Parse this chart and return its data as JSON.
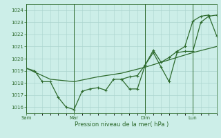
{
  "background_color": "#cceee8",
  "grid_color": "#aad4ce",
  "line_color": "#2d6a2d",
  "xlabel": "Pression niveau de la mer( hPa )",
  "ylim": [
    1015.5,
    1024.5
  ],
  "yticks": [
    1016,
    1017,
    1018,
    1019,
    1020,
    1021,
    1022,
    1023,
    1024
  ],
  "day_labels": [
    "Sam",
    "Mar",
    "Dim",
    "Lun"
  ],
  "day_positions": [
    0.0,
    0.25,
    0.625,
    0.875
  ],
  "vline_positions": [
    0.0,
    0.25,
    0.625,
    0.875
  ],
  "line1_x": [
    0.0,
    0.042,
    0.083,
    0.125,
    0.167,
    0.208,
    0.25,
    0.292,
    0.333,
    0.375,
    0.417,
    0.458,
    0.5,
    0.542,
    0.583,
    0.625,
    0.667,
    0.708,
    0.75,
    0.792,
    0.833,
    0.875,
    0.917,
    0.958,
    1.0
  ],
  "line1_y": [
    1019.2,
    1019.0,
    1018.1,
    1018.1,
    1016.8,
    1016.0,
    1015.8,
    1017.3,
    1017.5,
    1017.6,
    1017.4,
    1018.3,
    1018.3,
    1017.5,
    1017.5,
    1019.5,
    1020.5,
    1019.3,
    1018.1,
    1020.5,
    1020.6,
    1020.6,
    1023.0,
    1023.5,
    1023.6
  ],
  "line2_x": [
    0.0,
    0.125,
    0.25,
    0.375,
    0.5,
    0.625,
    0.75,
    0.875,
    1.0
  ],
  "line2_y": [
    1019.2,
    1018.3,
    1018.1,
    1018.5,
    1018.8,
    1019.3,
    1019.9,
    1020.5,
    1021.0
  ],
  "line3_x": [
    0.5,
    0.542,
    0.583,
    0.625,
    0.667,
    0.708,
    0.75,
    0.792,
    0.833,
    0.875,
    0.917,
    0.958,
    1.0
  ],
  "line3_y": [
    1018.3,
    1018.5,
    1018.6,
    1019.5,
    1020.7,
    1019.7,
    1020.1,
    1020.6,
    1021.0,
    1023.1,
    1023.5,
    1023.6,
    1021.9
  ],
  "xmin": 0.0,
  "xmax": 1.0,
  "minor_xtick_count": 24
}
